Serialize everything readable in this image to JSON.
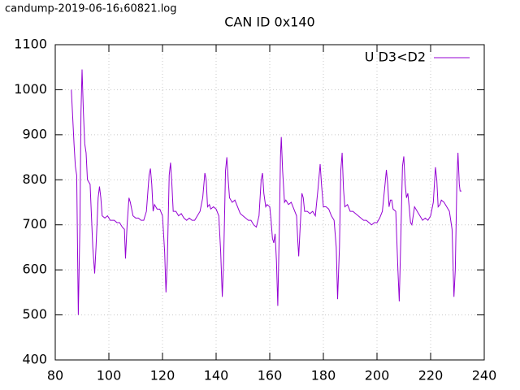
{
  "chart_data": {
    "type": "line",
    "title": "CAN ID 0x140",
    "annotation": "candump-2019-06-16₁60821.log",
    "xlim": [
      80,
      240
    ],
    "xticks": [
      80,
      100,
      120,
      140,
      160,
      180,
      200,
      220,
      240
    ],
    "ylim": [
      400,
      1100
    ],
    "yticks": [
      400,
      500,
      600,
      700,
      800,
      900,
      1000,
      1100
    ],
    "grid": true,
    "legend": "top-right",
    "x": [
      86,
      87,
      87.5,
      88,
      88.6,
      89.2,
      89.6,
      90,
      90.5,
      91,
      91.5,
      92,
      93,
      94,
      94.7,
      95.2,
      96,
      96.5,
      97,
      97.5,
      98.5,
      99.5,
      100.5,
      102,
      103,
      104,
      105,
      105.8,
      106.2,
      106.8,
      107.5,
      108,
      109,
      110,
      111,
      112,
      113,
      114,
      115,
      115.5,
      116,
      116.5,
      117,
      118,
      119,
      120,
      120.8,
      121.3,
      121.8,
      122.5,
      123,
      123.5,
      124,
      125,
      126,
      127,
      128,
      129,
      130,
      131,
      132,
      133,
      134,
      135,
      135.8,
      136.3,
      136.8,
      137.5,
      138,
      139,
      140,
      141,
      141.7,
      142.3,
      142.8,
      143.5,
      144,
      144.5,
      145,
      146,
      147,
      148,
      149,
      150,
      151,
      152,
      153,
      154,
      155,
      156,
      156.8,
      157.3,
      157.8,
      158.5,
      159,
      160,
      160.5,
      161,
      161.5,
      162,
      162.5,
      163,
      163.6,
      164,
      164.3,
      164.8,
      165.5,
      166,
      167,
      168,
      169,
      170,
      170.5,
      170.8,
      171.3,
      172,
      172.5,
      173,
      174,
      175,
      176,
      177,
      178,
      178.8,
      179.3,
      180,
      181,
      182,
      183,
      184,
      184.8,
      185.3,
      186,
      186.5,
      187,
      187.5,
      188,
      189,
      190,
      191,
      192,
      193,
      194,
      195,
      196,
      197,
      198,
      199,
      200,
      201,
      202,
      203,
      203.5,
      204,
      204.5,
      205,
      205.5,
      206,
      207,
      207.8,
      208.3,
      208.8,
      209.5,
      210,
      210.5,
      211,
      211.5,
      212,
      212.5,
      213,
      214,
      215,
      216,
      217,
      218,
      219,
      220,
      221,
      221.8,
      222.3,
      222.8,
      223.5,
      224,
      225,
      226,
      227,
      228,
      228.7,
      229.2,
      229.8,
      230.2,
      230.7,
      231,
      231.5
    ],
    "series": [
      {
        "name": "U D3<D2",
        "color": "#9400d3",
        "values": [
          1000,
          880,
          830,
          810,
          500,
          700,
          950,
          1045,
          950,
          880,
          860,
          800,
          790,
          650,
          592,
          650,
          760,
          785,
          760,
          720,
          715,
          720,
          710,
          710,
          705,
          705,
          695,
          690,
          625,
          700,
          760,
          750,
          720,
          715,
          715,
          710,
          710,
          730,
          810,
          825,
          790,
          730,
          745,
          735,
          735,
          720,
          640,
          550,
          620,
          810,
          838,
          790,
          730,
          730,
          720,
          725,
          715,
          710,
          715,
          710,
          710,
          720,
          730,
          760,
          815,
          800,
          740,
          745,
          735,
          740,
          735,
          720,
          640,
          540,
          620,
          820,
          850,
          800,
          760,
          750,
          755,
          740,
          725,
          720,
          715,
          710,
          710,
          700,
          695,
          720,
          800,
          815,
          770,
          740,
          745,
          740,
          710,
          670,
          660,
          680,
          620,
          520,
          700,
          850,
          895,
          820,
          750,
          755,
          745,
          750,
          735,
          720,
          660,
          630,
          690,
          770,
          760,
          730,
          730,
          725,
          730,
          720,
          780,
          835,
          790,
          740,
          740,
          735,
          720,
          710,
          650,
          535,
          650,
          820,
          860,
          780,
          740,
          745,
          730,
          730,
          725,
          720,
          715,
          710,
          710,
          705,
          700,
          705,
          705,
          715,
          730,
          790,
          822,
          790,
          740,
          755,
          755,
          735,
          730,
          600,
          530,
          650,
          830,
          852,
          790,
          760,
          770,
          740,
          705,
          700,
          740,
          730,
          720,
          710,
          715,
          710,
          720,
          750,
          828,
          800,
          740,
          745,
          755,
          750,
          740,
          730,
          690,
          540,
          600,
          800,
          860,
          790,
          775,
          775
        ]
      }
    ]
  }
}
